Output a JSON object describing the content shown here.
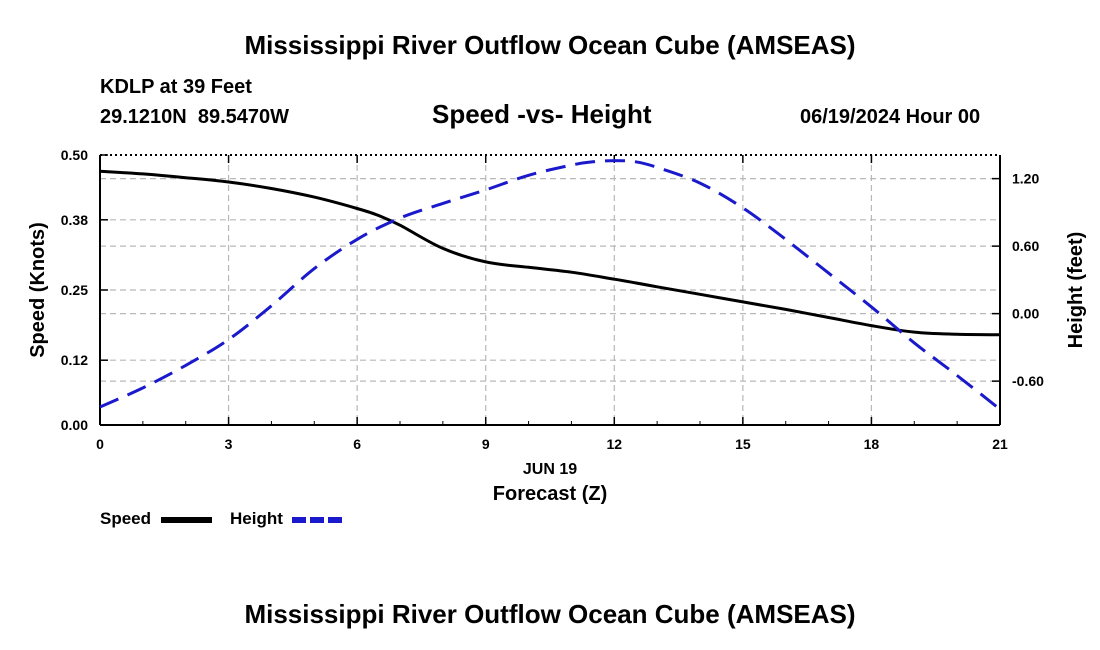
{
  "chart_data": {
    "type": "line",
    "title": "Mississippi River Outflow Ocean Cube (AMSEAS)",
    "station_label": "KDLP at 39 Feet",
    "coordinates": "29.1210N  89.5470W",
    "subtitle": "Speed -vs- Height",
    "date_label": "06/19/2024 Hour 00",
    "xlabel": "Forecast (Z)",
    "date_tick_label": "JUN 19",
    "x_ticks": [
      0,
      3,
      6,
      9,
      12,
      15,
      18,
      21
    ],
    "xlim": [
      0,
      21
    ],
    "ylabel_left": "Speed (Knots)",
    "ylim_left": [
      0,
      0.5
    ],
    "y_ticks_left": [
      0.0,
      0.12,
      0.25,
      0.38,
      0.5
    ],
    "y_tick_labels_left": [
      "0.00",
      "0.12",
      "0.25",
      "0.38",
      "0.50"
    ],
    "ylabel_right": "Height (feet)",
    "ylim_right": [
      -0.99,
      1.41
    ],
    "y_ticks_right": [
      -0.6,
      0.0,
      0.6,
      1.2
    ],
    "y_tick_labels_right": [
      "-0.60",
      "0.00",
      "0.60",
      "1.20"
    ],
    "grid": true,
    "series": [
      {
        "name": "Speed",
        "axis": "left",
        "color": "#000000",
        "style": "solid",
        "x": [
          0,
          1,
          2,
          3,
          4,
          5,
          6,
          6.5,
          7,
          8,
          9,
          10,
          11,
          12,
          13,
          14,
          15,
          16,
          17,
          18,
          19,
          20,
          21
        ],
        "values": [
          0.47,
          0.465,
          0.458,
          0.45,
          0.438,
          0.422,
          0.401,
          0.388,
          0.37,
          0.327,
          0.302,
          0.292,
          0.283,
          0.27,
          0.256,
          0.242,
          0.228,
          0.214,
          0.199,
          0.184,
          0.172,
          0.168,
          0.167
        ]
      },
      {
        "name": "Height",
        "axis": "right",
        "color": "#1a1acc",
        "style": "dashed",
        "x": [
          0,
          1,
          2,
          3,
          4,
          5,
          6,
          7,
          8,
          9,
          10,
          11,
          11.5,
          12,
          12.5,
          13,
          14,
          15,
          16,
          17,
          18,
          19,
          20,
          21
        ],
        "values": [
          -0.83,
          -0.66,
          -0.46,
          -0.23,
          0.07,
          0.4,
          0.66,
          0.85,
          0.98,
          1.1,
          1.23,
          1.32,
          1.35,
          1.36,
          1.35,
          1.3,
          1.16,
          0.94,
          0.66,
          0.36,
          0.06,
          -0.26,
          -0.55,
          -0.85
        ]
      }
    ]
  },
  "legend": {
    "speed_label": "Speed",
    "height_label": "Height"
  },
  "footer_title": "Mississippi River Outflow Ocean Cube (AMSEAS)"
}
